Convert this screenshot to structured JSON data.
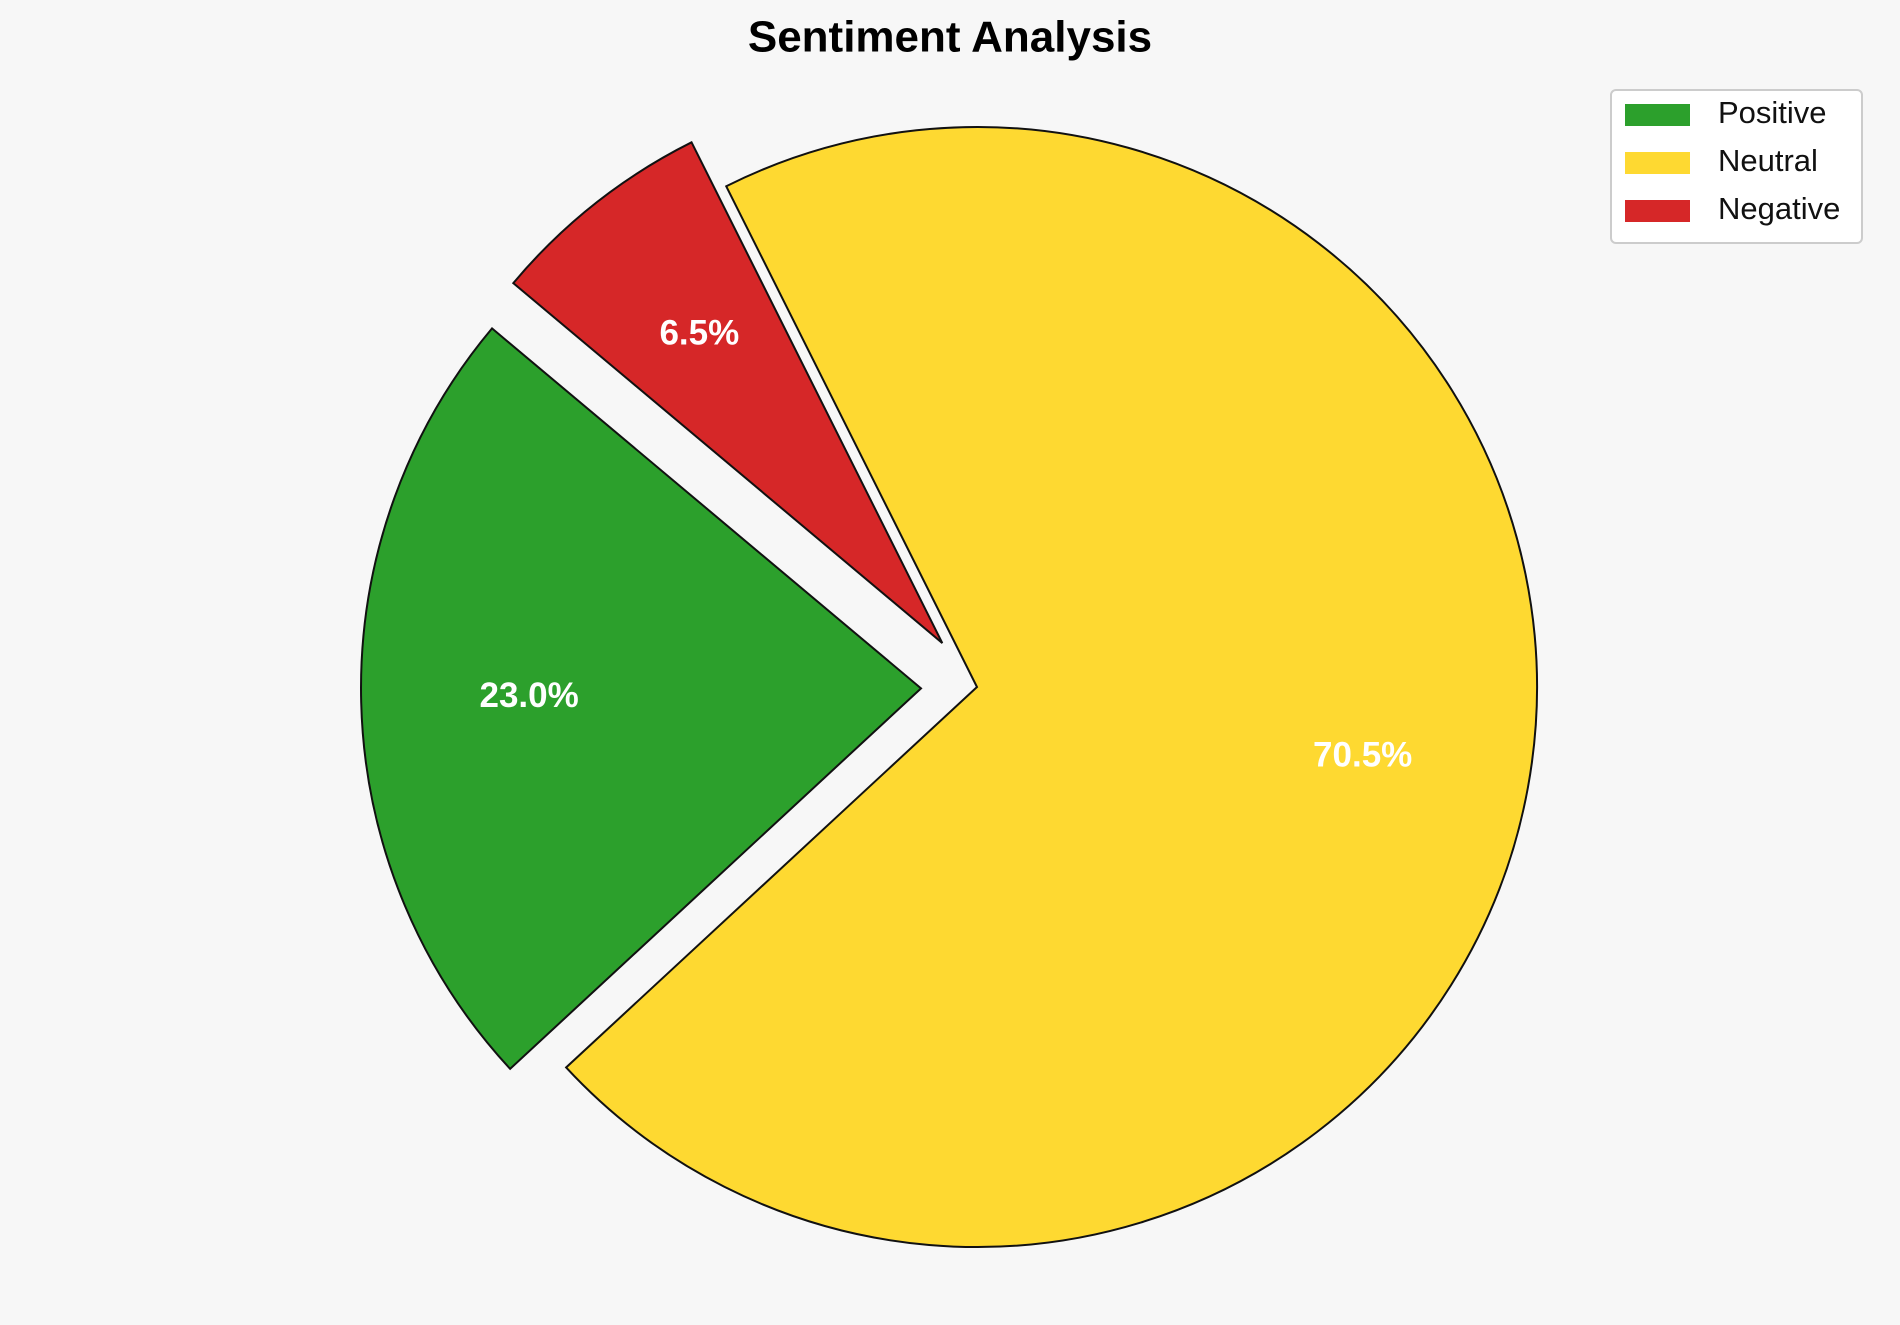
{
  "chart_data": {
    "type": "pie",
    "title": "Sentiment Analysis",
    "categories": [
      "Positive",
      "Neutral",
      "Negative"
    ],
    "values": [
      23.0,
      70.5,
      6.5
    ],
    "value_labels": [
      "23.0%",
      "70.5%",
      "6.5%"
    ],
    "colors": [
      "#2ca02c",
      "#fed931",
      "#d62728"
    ],
    "startangle": 140,
    "counterclock": true,
    "explode": [
      0.1,
      0,
      0.1
    ],
    "pctdistance": 0.7,
    "legend": "upper right"
  }
}
